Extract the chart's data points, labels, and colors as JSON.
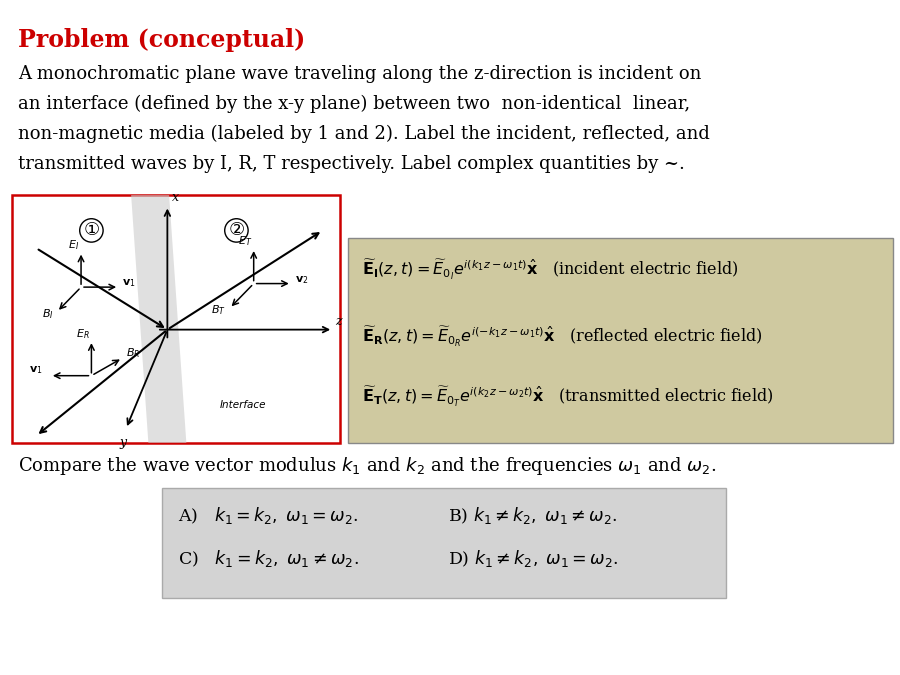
{
  "title": "Problem (conceptual)",
  "title_color": "#cc0000",
  "title_fontsize": 17,
  "background_color": "#ffffff",
  "body_lines": [
    "A monochromatic plane wave traveling along the z-direction is incident on",
    "an interface (defined by the x-y plane) between two  non-identical  linear,",
    "non-magnetic media (labeled by 1 and 2). Label the incident, reflected, and",
    "transmitted waves by I, R, T respectively. Label complex quantities by ~."
  ],
  "body_fontsize": 13.0,
  "equation_box_color": "#cfc9a0",
  "answer_box_color": "#d3d3d3",
  "diagram_border_color": "#cc0000",
  "eq_fontsize": 11.5,
  "ans_fontsize": 12.5
}
